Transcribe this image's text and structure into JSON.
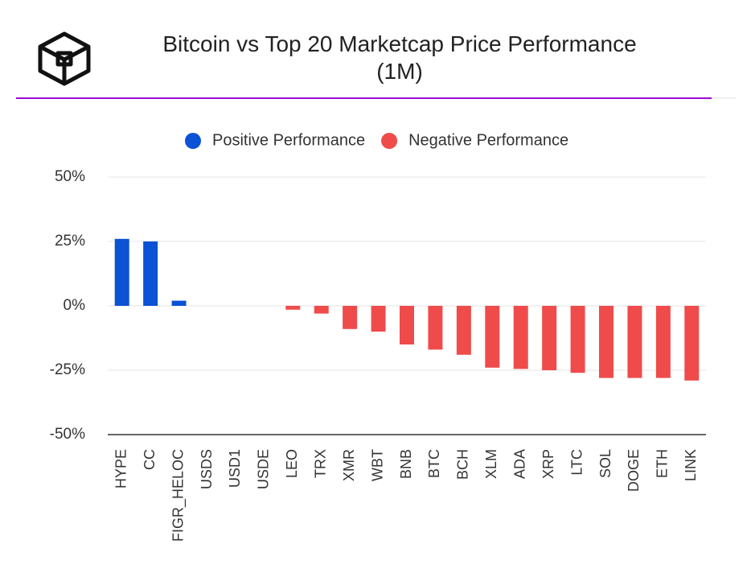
{
  "chart_data": {
    "type": "bar",
    "title": "Bitcoin vs Top 20 Marketcap Price Performance (1M)",
    "categories": [
      "HYPE",
      "CC",
      "FIGR_HELOC",
      "USDS",
      "USD1",
      "USDE",
      "LEO",
      "TRX",
      "XMR",
      "WBT",
      "BNB",
      "BTC",
      "BCH",
      "XLM",
      "ADA",
      "XRP",
      "LTC",
      "SOL",
      "DOGE",
      "ETH",
      "LINK"
    ],
    "series": [
      {
        "name": "Positive Performance",
        "color": "#0b52d4",
        "values": [
          26,
          25,
          2,
          0,
          0,
          0,
          null,
          null,
          null,
          null,
          null,
          null,
          null,
          null,
          null,
          null,
          null,
          null,
          null,
          null,
          null
        ]
      },
      {
        "name": "Negative Performance",
        "color": "#ef4b4b",
        "values": [
          null,
          null,
          null,
          null,
          null,
          null,
          -1.5,
          -3,
          -9,
          -10,
          -15,
          -17,
          -19,
          -24,
          -24.5,
          -25,
          -26,
          -28,
          -28,
          -28,
          -29
        ]
      }
    ],
    "ylim": [
      -50,
      50
    ],
    "yticks": [
      {
        "value": -50,
        "label": "-50%"
      },
      {
        "value": -25,
        "label": "-25%"
      },
      {
        "value": 0,
        "label": "0%"
      },
      {
        "value": 25,
        "label": "25%"
      },
      {
        "value": 50,
        "label": "50%"
      }
    ],
    "grid": true
  }
}
